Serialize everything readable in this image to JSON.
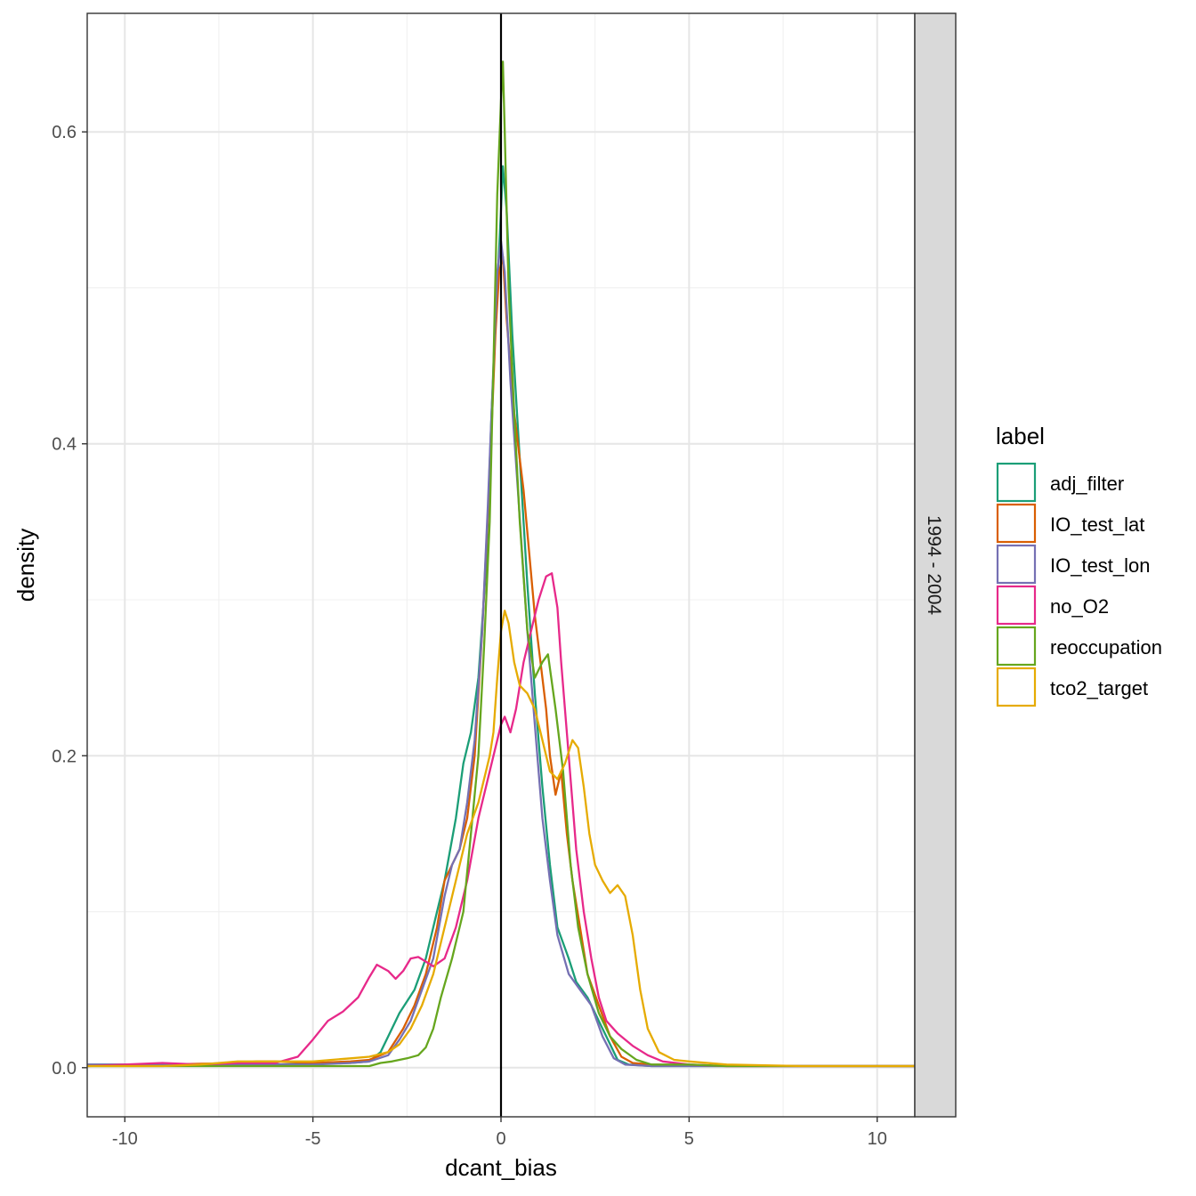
{
  "chart_data": {
    "type": "line",
    "xlabel": "dcant_bias",
    "ylabel": "density",
    "xlim": [
      -11,
      11
    ],
    "ylim": [
      -0.0315,
      0.676
    ],
    "x_ticks": [
      -10,
      -5,
      0,
      5,
      10
    ],
    "x_tick_labels": [
      "-10",
      "-5",
      "0",
      "5",
      "10"
    ],
    "y_ticks": [
      0.0,
      0.2,
      0.4,
      0.6
    ],
    "y_tick_labels": [
      "0.0",
      "0.2",
      "0.4",
      "0.6"
    ],
    "grid": true,
    "vline_x": 0,
    "facet_label": "1994 - 2004",
    "legend": {
      "title": "label",
      "position": "right"
    },
    "series": [
      {
        "name": "adj_filter",
        "color": "#1B9E77",
        "points": [
          [
            -11,
            0.002
          ],
          [
            -8,
            0.002
          ],
          [
            -6,
            0.002
          ],
          [
            -4,
            0.003
          ],
          [
            -3.5,
            0.004
          ],
          [
            -3.2,
            0.01
          ],
          [
            -3,
            0.02
          ],
          [
            -2.7,
            0.035
          ],
          [
            -2.3,
            0.05
          ],
          [
            -2,
            0.07
          ],
          [
            -1.7,
            0.1
          ],
          [
            -1.5,
            0.12
          ],
          [
            -1.2,
            0.16
          ],
          [
            -1.0,
            0.195
          ],
          [
            -0.8,
            0.215
          ],
          [
            -0.6,
            0.25
          ],
          [
            -0.4,
            0.32
          ],
          [
            -0.25,
            0.42
          ],
          [
            -0.1,
            0.5
          ],
          [
            0,
            0.55
          ],
          [
            0.05,
            0.578
          ],
          [
            0.15,
            0.55
          ],
          [
            0.3,
            0.47
          ],
          [
            0.5,
            0.39
          ],
          [
            0.7,
            0.31
          ],
          [
            0.9,
            0.24
          ],
          [
            1.1,
            0.18
          ],
          [
            1.3,
            0.13
          ],
          [
            1.5,
            0.09
          ],
          [
            1.8,
            0.07
          ],
          [
            2.0,
            0.055
          ],
          [
            2.3,
            0.045
          ],
          [
            2.6,
            0.03
          ],
          [
            2.9,
            0.015
          ],
          [
            3.1,
            0.005
          ],
          [
            3.4,
            0.002
          ],
          [
            4,
            0.001
          ],
          [
            6,
            0.001
          ],
          [
            8,
            0.001
          ],
          [
            11,
            0.001
          ]
        ]
      },
      {
        "name": "IO_test_lat",
        "color": "#D95F02",
        "points": [
          [
            -11,
            0.001
          ],
          [
            -9,
            0.002
          ],
          [
            -7,
            0.003
          ],
          [
            -6.5,
            0.004
          ],
          [
            -6,
            0.004
          ],
          [
            -5,
            0.003
          ],
          [
            -4,
            0.004
          ],
          [
            -3.5,
            0.005
          ],
          [
            -3,
            0.01
          ],
          [
            -2.6,
            0.025
          ],
          [
            -2.3,
            0.04
          ],
          [
            -2.0,
            0.06
          ],
          [
            -1.7,
            0.09
          ],
          [
            -1.5,
            0.12
          ],
          [
            -1.3,
            0.13
          ],
          [
            -1.1,
            0.14
          ],
          [
            -0.9,
            0.16
          ],
          [
            -0.7,
            0.2
          ],
          [
            -0.5,
            0.28
          ],
          [
            -0.3,
            0.38
          ],
          [
            -0.15,
            0.47
          ],
          [
            -0.05,
            0.51
          ],
          [
            0.05,
            0.52
          ],
          [
            0.15,
            0.48
          ],
          [
            0.25,
            0.45
          ],
          [
            0.35,
            0.42
          ],
          [
            0.45,
            0.4
          ],
          [
            0.6,
            0.37
          ],
          [
            0.75,
            0.33
          ],
          [
            0.9,
            0.29
          ],
          [
            1.05,
            0.26
          ],
          [
            1.2,
            0.23
          ],
          [
            1.3,
            0.2
          ],
          [
            1.45,
            0.175
          ],
          [
            1.6,
            0.19
          ],
          [
            1.75,
            0.15
          ],
          [
            1.9,
            0.12
          ],
          [
            2.1,
            0.09
          ],
          [
            2.3,
            0.06
          ],
          [
            2.6,
            0.04
          ],
          [
            2.9,
            0.02
          ],
          [
            3.2,
            0.007
          ],
          [
            3.5,
            0.003
          ],
          [
            4,
            0.002
          ],
          [
            6,
            0.001
          ],
          [
            8,
            0.001
          ],
          [
            11,
            0.001
          ]
        ]
      },
      {
        "name": "IO_test_lon",
        "color": "#7570B3",
        "points": [
          [
            -11,
            0.002
          ],
          [
            -9,
            0.002
          ],
          [
            -7,
            0.002
          ],
          [
            -5,
            0.002
          ],
          [
            -4,
            0.003
          ],
          [
            -3.5,
            0.004
          ],
          [
            -3,
            0.008
          ],
          [
            -2.7,
            0.018
          ],
          [
            -2.4,
            0.03
          ],
          [
            -2.1,
            0.05
          ],
          [
            -1.8,
            0.07
          ],
          [
            -1.5,
            0.11
          ],
          [
            -1.3,
            0.13
          ],
          [
            -1.1,
            0.14
          ],
          [
            -0.9,
            0.17
          ],
          [
            -0.7,
            0.21
          ],
          [
            -0.5,
            0.28
          ],
          [
            -0.35,
            0.36
          ],
          [
            -0.2,
            0.45
          ],
          [
            -0.1,
            0.51
          ],
          [
            0,
            0.53
          ],
          [
            0.1,
            0.51
          ],
          [
            0.25,
            0.44
          ],
          [
            0.45,
            0.37
          ],
          [
            0.7,
            0.28
          ],
          [
            0.9,
            0.22
          ],
          [
            1.1,
            0.16
          ],
          [
            1.3,
            0.12
          ],
          [
            1.5,
            0.085
          ],
          [
            1.8,
            0.06
          ],
          [
            2.1,
            0.05
          ],
          [
            2.4,
            0.04
          ],
          [
            2.7,
            0.02
          ],
          [
            3.0,
            0.006
          ],
          [
            3.3,
            0.002
          ],
          [
            4,
            0.001
          ],
          [
            6,
            0.001
          ],
          [
            8,
            0.001
          ],
          [
            11,
            0.001
          ]
        ]
      },
      {
        "name": "no_O2",
        "color": "#E7298A",
        "points": [
          [
            -11,
            0.001
          ],
          [
            -10,
            0.002
          ],
          [
            -9,
            0.003
          ],
          [
            -8,
            0.002
          ],
          [
            -7,
            0.003
          ],
          [
            -6,
            0.003
          ],
          [
            -5.4,
            0.007
          ],
          [
            -5,
            0.018
          ],
          [
            -4.6,
            0.03
          ],
          [
            -4.2,
            0.036
          ],
          [
            -3.8,
            0.045
          ],
          [
            -3.5,
            0.058
          ],
          [
            -3.3,
            0.066
          ],
          [
            -3.0,
            0.062
          ],
          [
            -2.8,
            0.057
          ],
          [
            -2.6,
            0.062
          ],
          [
            -2.4,
            0.07
          ],
          [
            -2.2,
            0.071
          ],
          [
            -2.0,
            0.068
          ],
          [
            -1.8,
            0.065
          ],
          [
            -1.5,
            0.07
          ],
          [
            -1.2,
            0.09
          ],
          [
            -0.9,
            0.12
          ],
          [
            -0.6,
            0.16
          ],
          [
            -0.3,
            0.19
          ],
          [
            -0.1,
            0.21
          ],
          [
            0,
            0.22
          ],
          [
            0.1,
            0.225
          ],
          [
            0.25,
            0.215
          ],
          [
            0.4,
            0.23
          ],
          [
            0.6,
            0.26
          ],
          [
            0.8,
            0.28
          ],
          [
            1.0,
            0.3
          ],
          [
            1.2,
            0.315
          ],
          [
            1.35,
            0.317
          ],
          [
            1.5,
            0.295
          ],
          [
            1.6,
            0.26
          ],
          [
            1.8,
            0.2
          ],
          [
            2.0,
            0.14
          ],
          [
            2.2,
            0.1
          ],
          [
            2.4,
            0.07
          ],
          [
            2.6,
            0.045
          ],
          [
            2.8,
            0.03
          ],
          [
            3.1,
            0.022
          ],
          [
            3.5,
            0.014
          ],
          [
            3.9,
            0.008
          ],
          [
            4.3,
            0.004
          ],
          [
            5,
            0.002
          ],
          [
            6,
            0.001
          ],
          [
            8,
            0.001
          ],
          [
            11,
            0.001
          ]
        ]
      },
      {
        "name": "reoccupation",
        "color": "#66A61E",
        "points": [
          [
            -11,
            0.001
          ],
          [
            -8,
            0.001
          ],
          [
            -6,
            0.001
          ],
          [
            -4,
            0.001
          ],
          [
            -3.5,
            0.001
          ],
          [
            -3.2,
            0.003
          ],
          [
            -2.9,
            0.004
          ],
          [
            -2.5,
            0.006
          ],
          [
            -2.2,
            0.008
          ],
          [
            -2.0,
            0.013
          ],
          [
            -1.8,
            0.025
          ],
          [
            -1.6,
            0.045
          ],
          [
            -1.3,
            0.07
          ],
          [
            -1.0,
            0.1
          ],
          [
            -0.8,
            0.15
          ],
          [
            -0.6,
            0.2
          ],
          [
            -0.45,
            0.27
          ],
          [
            -0.3,
            0.35
          ],
          [
            -0.2,
            0.45
          ],
          [
            -0.1,
            0.56
          ],
          [
            0,
            0.62
          ],
          [
            0.05,
            0.645
          ],
          [
            0.1,
            0.6
          ],
          [
            0.2,
            0.5
          ],
          [
            0.35,
            0.42
          ],
          [
            0.5,
            0.35
          ],
          [
            0.7,
            0.28
          ],
          [
            0.9,
            0.25
          ],
          [
            1.1,
            0.26
          ],
          [
            1.25,
            0.265
          ],
          [
            1.45,
            0.23
          ],
          [
            1.65,
            0.19
          ],
          [
            1.85,
            0.13
          ],
          [
            2.05,
            0.09
          ],
          [
            2.3,
            0.06
          ],
          [
            2.6,
            0.035
          ],
          [
            2.9,
            0.02
          ],
          [
            3.2,
            0.012
          ],
          [
            3.6,
            0.005
          ],
          [
            4.0,
            0.002
          ],
          [
            5,
            0.002
          ],
          [
            6,
            0.001
          ],
          [
            8,
            0.001
          ],
          [
            11,
            0.001
          ]
        ]
      },
      {
        "name": "tco2_target",
        "color": "#E6AB02",
        "points": [
          [
            -11,
            0.001
          ],
          [
            -9,
            0.001
          ],
          [
            -8,
            0.002
          ],
          [
            -7,
            0.004
          ],
          [
            -6,
            0.004
          ],
          [
            -5,
            0.004
          ],
          [
            -4.5,
            0.005
          ],
          [
            -4,
            0.006
          ],
          [
            -3.5,
            0.007
          ],
          [
            -3,
            0.01
          ],
          [
            -2.7,
            0.015
          ],
          [
            -2.4,
            0.025
          ],
          [
            -2.1,
            0.04
          ],
          [
            -1.8,
            0.06
          ],
          [
            -1.5,
            0.09
          ],
          [
            -1.2,
            0.12
          ],
          [
            -0.9,
            0.15
          ],
          [
            -0.6,
            0.17
          ],
          [
            -0.4,
            0.19
          ],
          [
            -0.3,
            0.2
          ],
          [
            -0.2,
            0.215
          ],
          [
            -0.1,
            0.25
          ],
          [
            0,
            0.28
          ],
          [
            0.1,
            0.293
          ],
          [
            0.2,
            0.285
          ],
          [
            0.35,
            0.26
          ],
          [
            0.5,
            0.245
          ],
          [
            0.7,
            0.24
          ],
          [
            0.9,
            0.23
          ],
          [
            1.1,
            0.21
          ],
          [
            1.3,
            0.19
          ],
          [
            1.5,
            0.185
          ],
          [
            1.7,
            0.195
          ],
          [
            1.9,
            0.21
          ],
          [
            2.05,
            0.205
          ],
          [
            2.2,
            0.18
          ],
          [
            2.35,
            0.15
          ],
          [
            2.5,
            0.13
          ],
          [
            2.7,
            0.12
          ],
          [
            2.9,
            0.112
          ],
          [
            3.1,
            0.117
          ],
          [
            3.3,
            0.11
          ],
          [
            3.5,
            0.085
          ],
          [
            3.7,
            0.05
          ],
          [
            3.9,
            0.025
          ],
          [
            4.2,
            0.01
          ],
          [
            4.6,
            0.005
          ],
          [
            5,
            0.004
          ],
          [
            6,
            0.002
          ],
          [
            8,
            0.001
          ],
          [
            11,
            0.001
          ]
        ]
      }
    ]
  }
}
